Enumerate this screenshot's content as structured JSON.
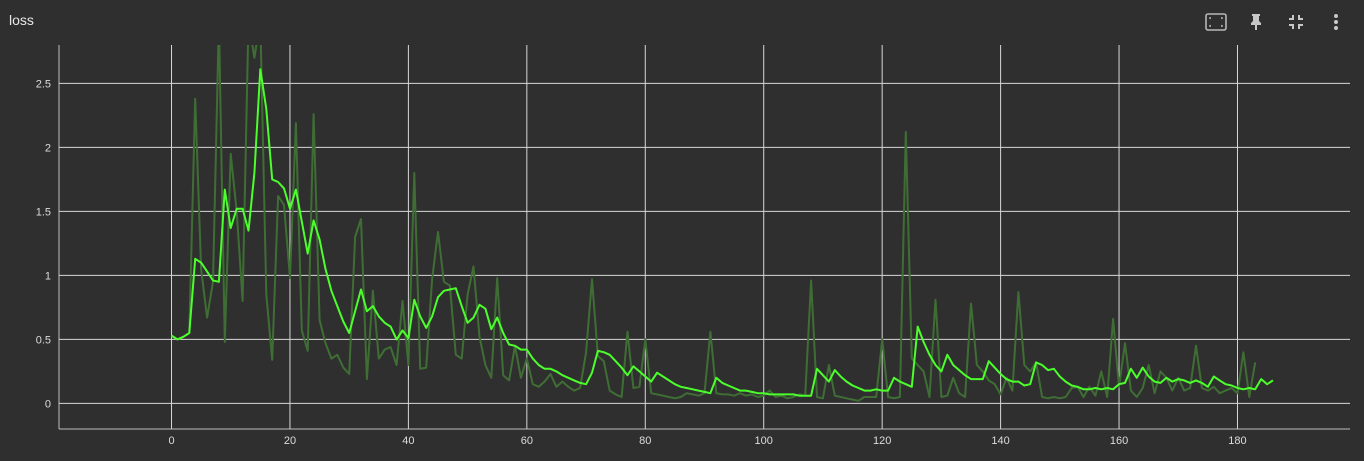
{
  "card": {
    "title": "loss"
  },
  "toolbar": {
    "buttons": [
      {
        "name": "fit-domain-icon"
      },
      {
        "name": "pin-icon"
      },
      {
        "name": "exit-fullscreen-icon"
      },
      {
        "name": "more-vert-icon"
      }
    ]
  },
  "colors": {
    "background": "#2f2f2f",
    "grid": "#d8d8d8",
    "smoothed": "#4cff2c",
    "raw": "#3f6e35"
  },
  "chart_data": {
    "type": "line",
    "title": "loss",
    "xlabel": "",
    "ylabel": "",
    "xlim": [
      -19,
      199
    ],
    "ylim": [
      -0.2,
      2.8
    ],
    "xticks": [
      0,
      20,
      40,
      60,
      80,
      100,
      120,
      140,
      160,
      180
    ],
    "yticks": [
      0,
      0.5,
      1,
      1.5,
      2,
      2.5
    ],
    "xtick_labels": [
      "0",
      "20",
      "40",
      "60",
      "80",
      "100",
      "120",
      "140",
      "160",
      "180"
    ],
    "ytick_labels": [
      "0",
      "0.5",
      "1",
      "1.5",
      "2",
      "2.5"
    ],
    "grid": true,
    "series": [
      {
        "role": "raw",
        "values": [
          0.53,
          0.5,
          0.52,
          0.55,
          2.38,
          1.05,
          0.67,
          0.95,
          3.0,
          0.48,
          1.95,
          1.5,
          0.8,
          3.0,
          2.7,
          3.0,
          0.85,
          0.34,
          1.62,
          1.55,
          0.98,
          2.19,
          0.57,
          0.41,
          2.26,
          0.65,
          0.47,
          0.35,
          0.38,
          0.28,
          0.23,
          1.3,
          1.44,
          0.19,
          0.88,
          0.35,
          0.42,
          0.44,
          0.3,
          0.8,
          0.3,
          1.8,
          0.27,
          0.28,
          0.97,
          1.34,
          0.95,
          0.92,
          0.38,
          0.35,
          0.85,
          1.07,
          0.52,
          0.3,
          0.2,
          0.98,
          0.22,
          0.18,
          0.45,
          0.2,
          0.35,
          0.15,
          0.13,
          0.17,
          0.23,
          0.13,
          0.17,
          0.13,
          0.1,
          0.12,
          0.4,
          0.97,
          0.37,
          0.33,
          0.1,
          0.07,
          0.05,
          0.56,
          0.12,
          0.13,
          0.5,
          0.08,
          0.07,
          0.06,
          0.05,
          0.04,
          0.05,
          0.08,
          0.07,
          0.06,
          0.08,
          0.56,
          0.08,
          0.07,
          0.07,
          0.06,
          0.08,
          0.06,
          0.07,
          0.05,
          0.06,
          0.1,
          0.05,
          0.06,
          0.04,
          0.05,
          0.07,
          0.06,
          0.96,
          0.05,
          0.04,
          0.3,
          0.06,
          0.05,
          0.04,
          0.03,
          0.02,
          0.05,
          0.05,
          0.05,
          0.5,
          0.05,
          0.04,
          0.05,
          2.12,
          0.35,
          0.3,
          0.25,
          0.05,
          0.81,
          0.05,
          0.06,
          0.2,
          0.08,
          0.05,
          0.78,
          0.3,
          0.25,
          0.18,
          0.15,
          0.07,
          0.2,
          0.1,
          0.87,
          0.3,
          0.25,
          0.32,
          0.05,
          0.04,
          0.05,
          0.04,
          0.05,
          0.12,
          0.13,
          0.05,
          0.13,
          0.06,
          0.25,
          0.05,
          0.66,
          0.13,
          0.47,
          0.1,
          0.05,
          0.12,
          0.3,
          0.08,
          0.25,
          0.2,
          0.1,
          0.2,
          0.1,
          0.12,
          0.45,
          0.12,
          0.1,
          0.13,
          0.08,
          0.1,
          0.12,
          0.08,
          0.4,
          0.05,
          0.32
        ]
      },
      {
        "role": "smoothed",
        "values": [
          0.53,
          0.5,
          0.52,
          0.55,
          1.13,
          1.1,
          1.03,
          0.96,
          0.95,
          1.67,
          1.37,
          1.52,
          1.52,
          1.35,
          1.8,
          2.61,
          2.3,
          1.75,
          1.73,
          1.68,
          1.52,
          1.67,
          1.42,
          1.17,
          1.43,
          1.28,
          1.05,
          0.88,
          0.76,
          0.64,
          0.55,
          0.72,
          0.89,
          0.72,
          0.76,
          0.68,
          0.63,
          0.6,
          0.5,
          0.57,
          0.51,
          0.81,
          0.68,
          0.59,
          0.68,
          0.83,
          0.88,
          0.89,
          0.9,
          0.76,
          0.63,
          0.67,
          0.77,
          0.74,
          0.58,
          0.67,
          0.55,
          0.46,
          0.45,
          0.42,
          0.42,
          0.35,
          0.3,
          0.27,
          0.27,
          0.25,
          0.22,
          0.2,
          0.18,
          0.16,
          0.15,
          0.24,
          0.41,
          0.4,
          0.38,
          0.33,
          0.28,
          0.22,
          0.29,
          0.25,
          0.21,
          0.17,
          0.24,
          0.21,
          0.18,
          0.15,
          0.13,
          0.12,
          0.11,
          0.1,
          0.09,
          0.08,
          0.2,
          0.16,
          0.14,
          0.12,
          0.1,
          0.1,
          0.09,
          0.08,
          0.08,
          0.07,
          0.07,
          0.07,
          0.07,
          0.07,
          0.06,
          0.06,
          0.06,
          0.27,
          0.22,
          0.17,
          0.26,
          0.21,
          0.17,
          0.14,
          0.12,
          0.1,
          0.1,
          0.11,
          0.1,
          0.1,
          0.2,
          0.17,
          0.15,
          0.13,
          0.6,
          0.48,
          0.38,
          0.3,
          0.25,
          0.38,
          0.3,
          0.26,
          0.22,
          0.19,
          0.19,
          0.19,
          0.33,
          0.28,
          0.23,
          0.19,
          0.17,
          0.17,
          0.14,
          0.15,
          0.32,
          0.3,
          0.26,
          0.27,
          0.21,
          0.17,
          0.14,
          0.13,
          0.11,
          0.11,
          0.12,
          0.11,
          0.12,
          0.11,
          0.15,
          0.16,
          0.27,
          0.2,
          0.28,
          0.21,
          0.17,
          0.16,
          0.2,
          0.17,
          0.19,
          0.18,
          0.16,
          0.18,
          0.16,
          0.13,
          0.21,
          0.18,
          0.15,
          0.14,
          0.12,
          0.11,
          0.12,
          0.11,
          0.19,
          0.15,
          0.18
        ]
      }
    ]
  }
}
